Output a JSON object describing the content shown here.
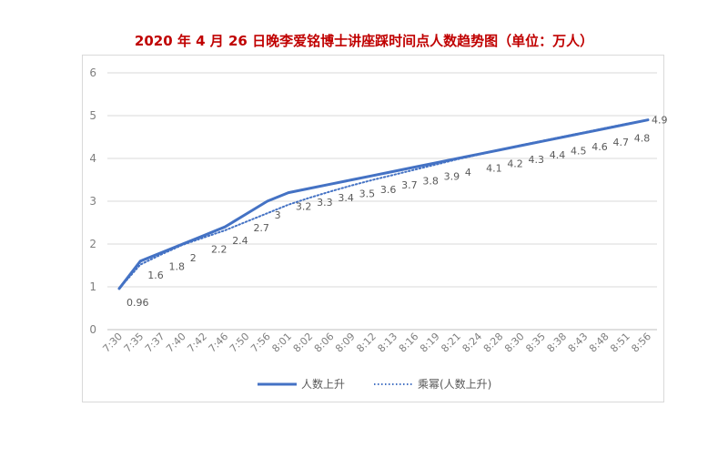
{
  "chart_data": {
    "type": "line",
    "title": "2020 年 4 月 26 日晚李爱铭博士讲座踩时间点人数趋势图（单位：万人）",
    "xlabel": "",
    "ylabel": "",
    "ylim": [
      0,
      6
    ],
    "yticks": [
      "0",
      "1",
      "2",
      "3",
      "4",
      "5",
      "6"
    ],
    "grid": true,
    "legend_position": "bottom",
    "categories": [
      "7:30",
      "7:35",
      "7:37",
      "7:40",
      "7:42",
      "7:46",
      "7:50",
      "7:56",
      "8:01",
      "8:02",
      "8:06",
      "8:09",
      "8:12",
      "8:13",
      "8:16",
      "8:19",
      "8:21",
      "8:24",
      "8:28",
      "8:30",
      "8:35",
      "8:38",
      "8:43",
      "8:48",
      "8:51",
      "8:56"
    ],
    "series": [
      {
        "name": "人数上升",
        "style": "solid",
        "color": "#4472c4",
        "values": [
          0.96,
          1.6,
          1.8,
          2,
          2.2,
          2.4,
          2.7,
          3,
          3.2,
          3.3,
          3.4,
          3.5,
          3.6,
          3.7,
          3.8,
          3.9,
          4,
          4.1,
          4.2,
          4.3,
          4.4,
          4.5,
          4.6,
          4.7,
          4.8,
          4.9
        ],
        "data_labels": [
          "0.96",
          "1.6",
          "1.8",
          "2",
          "2.2",
          "2.4",
          "2.7",
          "3",
          "3.2",
          "3.3",
          "3.4",
          "3.5",
          "3.6",
          "3.7",
          "3.8",
          "3.9",
          "4",
          "4.1",
          "4.2",
          "4.3",
          "4.4",
          "4.5",
          "4.6",
          "4.7",
          "4.8",
          "4.9"
        ]
      },
      {
        "name": "乘幂(人数上升)",
        "style": "dotted",
        "color": "#4472c4",
        "values": [
          0.96,
          1.52,
          1.76,
          1.98,
          2.15,
          2.32,
          2.52,
          2.72,
          2.92,
          3.08,
          3.23,
          3.37,
          3.5,
          3.62,
          3.74,
          3.86,
          3.98,
          4.09,
          4.2,
          4.31,
          4.41,
          4.51,
          4.61,
          4.71,
          4.81,
          4.9
        ]
      }
    ]
  }
}
